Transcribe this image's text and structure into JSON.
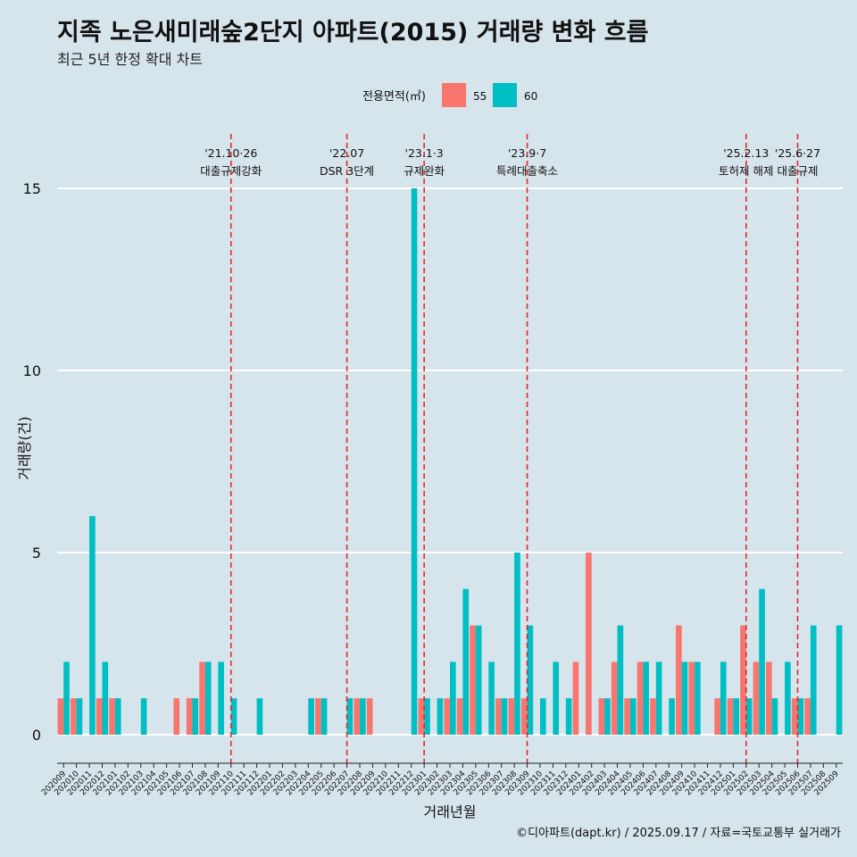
{
  "title": "지족 노은새미래숲2단지 아파트(2015) 거래량 변화 흐름",
  "subtitle": "최근 5년 한정 확대 차트",
  "caption": "©디아파트(dapt.kr) / 2025.09.17 / 자료=국토교통부 실거래가",
  "chart_data": {
    "type": "bar",
    "xlabel": "거래년월",
    "ylabel": "거래량(건)",
    "ylim": [
      0,
      15
    ],
    "yticks": [
      0,
      5,
      10,
      15
    ],
    "legend": {
      "title": "전용면적(㎡)",
      "position": "top"
    },
    "categories": [
      "202009",
      "202010",
      "202011",
      "202012",
      "202101",
      "202102",
      "202103",
      "202104",
      "202105",
      "202106",
      "202107",
      "202108",
      "202109",
      "202110",
      "202111",
      "202112",
      "202201",
      "202202",
      "202203",
      "202204",
      "202205",
      "202206",
      "202207",
      "202208",
      "202209",
      "202210",
      "202211",
      "202212",
      "202301",
      "202302",
      "202303",
      "202304",
      "202305",
      "202306",
      "202307",
      "202308",
      "202309",
      "202310",
      "202311",
      "202312",
      "202401",
      "202402",
      "202403",
      "202404",
      "202405",
      "202406",
      "202407",
      "202408",
      "202409",
      "202410",
      "202411",
      "202412",
      "202501",
      "202502",
      "202503",
      "202504",
      "202505",
      "202506",
      "202507",
      "202508",
      "202509"
    ],
    "series": [
      {
        "name": "55",
        "color": "#f8766d",
        "values": [
          1,
          1,
          0,
          1,
          1,
          0,
          0,
          0,
          0,
          1,
          1,
          2,
          0,
          0,
          0,
          0,
          0,
          0,
          0,
          0,
          1,
          0,
          0,
          1,
          1,
          0,
          0,
          0,
          1,
          0,
          1,
          1,
          3,
          0,
          1,
          1,
          1,
          0,
          0,
          0,
          2,
          5,
          1,
          2,
          1,
          2,
          1,
          0,
          3,
          2,
          0,
          1,
          1,
          3,
          2,
          2,
          0,
          1,
          1,
          0,
          0
        ]
      },
      {
        "name": "60",
        "color": "#00bfc4",
        "values": [
          2,
          1,
          6,
          2,
          1,
          0,
          1,
          0,
          0,
          0,
          1,
          2,
          2,
          1,
          0,
          1,
          0,
          0,
          0,
          1,
          1,
          0,
          1,
          1,
          0,
          0,
          0,
          15,
          1,
          1,
          2,
          4,
          3,
          2,
          1,
          5,
          3,
          1,
          2,
          1,
          0,
          0,
          1,
          3,
          1,
          2,
          2,
          1,
          2,
          2,
          0,
          2,
          1,
          1,
          4,
          1,
          2,
          1,
          3,
          0,
          3
        ]
      }
    ],
    "annotations": [
      {
        "at": "202110",
        "line1": "'21.10·26",
        "line2": "대출규제강화"
      },
      {
        "at": "202207",
        "line1": "'22.07",
        "line2": "DSR 3단계"
      },
      {
        "at": "202301",
        "line1": "'23.1·3",
        "line2": "규제완화"
      },
      {
        "at": "202309",
        "line1": "'23.9·7",
        "line2": "특례대출축소"
      },
      {
        "at": "202502",
        "line1": "'25.2.13",
        "line2": "토허제 해제"
      },
      {
        "at": "202506",
        "line1": "'25.6·27",
        "line2": "대출규제"
      }
    ]
  }
}
